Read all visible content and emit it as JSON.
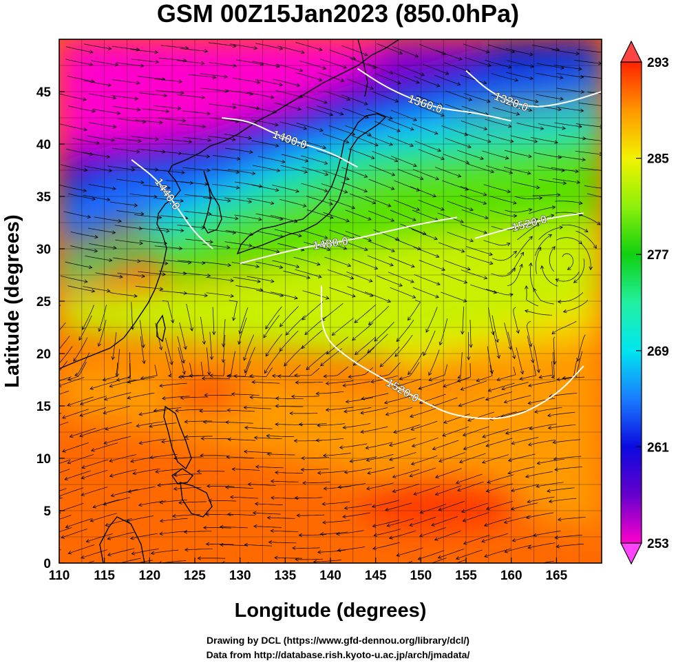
{
  "title": "GSM 00Z15Jan2023 (850.0hPa)",
  "map": {
    "x_axis": {
      "label": "Longitude (degrees)",
      "range": [
        110,
        170
      ],
      "ticks": [
        110,
        115,
        120,
        125,
        130,
        135,
        140,
        145,
        150,
        155,
        160,
        165
      ]
    },
    "y_axis": {
      "label": "Latitude  (degrees)",
      "range": [
        0,
        50
      ],
      "ticks": [
        0,
        5,
        10,
        15,
        20,
        25,
        30,
        35,
        40,
        45
      ]
    },
    "grid": true,
    "colorbar": {
      "ticks": [
        293,
        285,
        277,
        269,
        261,
        253
      ],
      "range": [
        253,
        293
      ],
      "stops": [
        {
          "value": 253,
          "color": "#ff00cc"
        },
        {
          "value": 257,
          "color": "#6600cc"
        },
        {
          "value": 261,
          "color": "#0a0ae0"
        },
        {
          "value": 265,
          "color": "#1a7cff"
        },
        {
          "value": 269,
          "color": "#00e6f0"
        },
        {
          "value": 273,
          "color": "#22f0a0"
        },
        {
          "value": 277,
          "color": "#10d010"
        },
        {
          "value": 281,
          "color": "#8ef00a"
        },
        {
          "value": 285,
          "color": "#f2f200"
        },
        {
          "value": 289,
          "color": "#ff9600"
        },
        {
          "value": 293,
          "color": "#ff2200"
        }
      ]
    },
    "contours": [
      {
        "label": "1400.0",
        "points": [
          [
            128,
            42.5
          ],
          [
            131,
            42.2
          ],
          [
            134,
            40.9
          ],
          [
            137,
            40.0
          ],
          [
            140,
            39.2
          ],
          [
            143,
            37.8
          ]
        ]
      },
      {
        "label": "1360.0",
        "points": [
          [
            143,
            47.2
          ],
          [
            146,
            45.5
          ],
          [
            149,
            44.3
          ],
          [
            152,
            43.4
          ],
          [
            156,
            43.0
          ],
          [
            160,
            42.2
          ]
        ]
      },
      {
        "label": "1320.0",
        "points": [
          [
            155,
            47.0
          ],
          [
            158,
            44.7
          ],
          [
            162,
            43.4
          ],
          [
            166,
            43.9
          ],
          [
            170,
            45.0
          ]
        ]
      },
      {
        "label": "1440.0",
        "points": [
          [
            118,
            38.5
          ],
          [
            121,
            36.5
          ],
          [
            123,
            34.0
          ],
          [
            125,
            31.5
          ],
          [
            127,
            30.0
          ]
        ]
      },
      {
        "label": "1480.0",
        "points": [
          [
            130,
            28.6
          ],
          [
            134,
            29.5
          ],
          [
            138,
            30.3
          ],
          [
            142,
            30.8
          ],
          [
            146,
            31.6
          ],
          [
            150,
            32.4
          ],
          [
            154,
            33.0
          ]
        ]
      },
      {
        "label": "1520.0",
        "points": [
          [
            156,
            31.0
          ],
          [
            160,
            32.0
          ],
          [
            164,
            32.9
          ],
          [
            168,
            33.4
          ]
        ]
      },
      {
        "label": "1520.0",
        "points": [
          [
            139,
            26.5
          ],
          [
            139,
            21.8
          ],
          [
            142,
            19.5
          ],
          [
            146,
            17.5
          ],
          [
            150,
            15.5
          ],
          [
            154,
            13.9
          ],
          [
            160,
            13.7
          ],
          [
            165,
            16.0
          ],
          [
            168,
            18.8
          ]
        ]
      }
    ],
    "credits": [
      "Drawing by DCL (https://www.gfd-dennou.org/library/dcl/)",
      "Data from http://database.rish.kyoto-u.ac.jp/arch/jmadata/"
    ]
  }
}
